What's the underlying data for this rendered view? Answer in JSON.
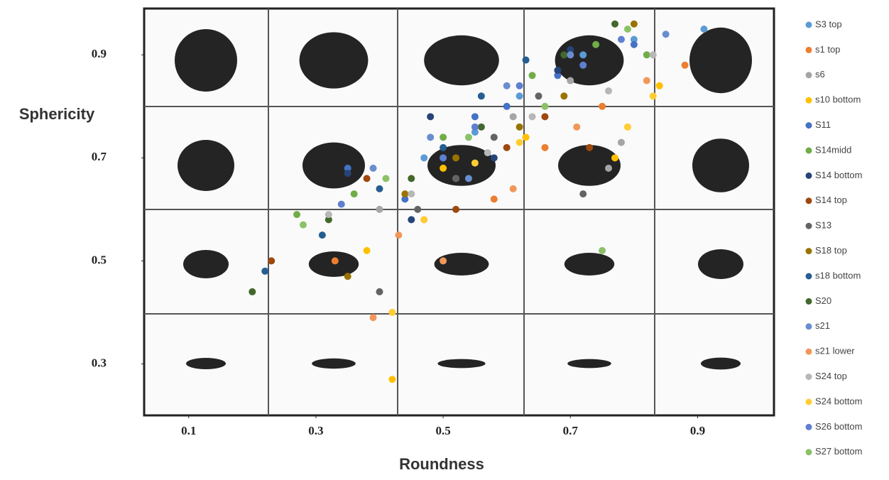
{
  "chart_data": {
    "type": "scatter",
    "x_label": "Roundness",
    "y_label": "Sphericity",
    "xlim": [
      0.03,
      1.02
    ],
    "ylim": [
      0.2,
      0.99
    ],
    "xticks": [
      0.1,
      0.3,
      0.5,
      0.7,
      0.9
    ],
    "yticks": [
      0.3,
      0.5,
      0.7,
      0.9
    ],
    "series": [
      {
        "name": "S3 top",
        "color": "#5b9bd5",
        "x": [
          0.91,
          0.55,
          0.62,
          0.72,
          0.47,
          0.8
        ],
        "values": [
          0.95,
          0.75,
          0.82,
          0.9,
          0.7,
          0.93
        ]
      },
      {
        "name": "s1 top",
        "color": "#ed7d31",
        "x": [
          0.33,
          0.47,
          0.58,
          0.66,
          0.75,
          0.88
        ],
        "values": [
          0.5,
          0.58,
          0.62,
          0.72,
          0.8,
          0.88
        ]
      },
      {
        "name": "s6",
        "color": "#a5a5a5",
        "x": [
          0.4,
          0.52,
          0.61,
          0.7,
          0.78,
          0.76
        ],
        "values": [
          0.6,
          0.66,
          0.78,
          0.85,
          0.73,
          0.68
        ]
      },
      {
        "name": "s10 bottom",
        "color": "#ffc000",
        "x": [
          0.42,
          0.38,
          0.5,
          0.63,
          0.77,
          0.84
        ],
        "values": [
          0.27,
          0.52,
          0.68,
          0.74,
          0.7,
          0.84
        ]
      },
      {
        "name": "S11",
        "color": "#4472c4",
        "x": [
          0.35,
          0.44,
          0.55,
          0.6,
          0.68,
          0.8
        ],
        "values": [
          0.68,
          0.62,
          0.78,
          0.8,
          0.86,
          0.92
        ]
      },
      {
        "name": "S14midd",
        "color": "#70ad47",
        "x": [
          0.27,
          0.36,
          0.5,
          0.64,
          0.74,
          0.82
        ],
        "values": [
          0.59,
          0.63,
          0.74,
          0.86,
          0.92,
          0.9
        ]
      },
      {
        "name": "S14 bottom",
        "color": "#264478",
        "x": [
          0.35,
          0.45,
          0.48,
          0.58,
          0.68,
          0.7
        ],
        "values": [
          0.67,
          0.58,
          0.78,
          0.7,
          0.87,
          0.91
        ]
      },
      {
        "name": "S14 top",
        "color": "#9e480e",
        "x": [
          0.23,
          0.38,
          0.52,
          0.6,
          0.66,
          0.73
        ],
        "values": [
          0.5,
          0.66,
          0.6,
          0.72,
          0.78,
          0.72
        ]
      },
      {
        "name": "S13",
        "color": "#636363",
        "x": [
          0.4,
          0.46,
          0.52,
          0.58,
          0.72,
          0.65
        ],
        "values": [
          0.44,
          0.6,
          0.66,
          0.74,
          0.63,
          0.82
        ]
      },
      {
        "name": "S18 top",
        "color": "#997300",
        "x": [
          0.35,
          0.44,
          0.52,
          0.62,
          0.69,
          0.8
        ],
        "values": [
          0.47,
          0.63,
          0.7,
          0.76,
          0.82,
          0.96
        ]
      },
      {
        "name": "s18 bottom",
        "color": "#255e91",
        "x": [
          0.22,
          0.31,
          0.4,
          0.5,
          0.56,
          0.63
        ],
        "values": [
          0.48,
          0.55,
          0.64,
          0.72,
          0.82,
          0.89
        ]
      },
      {
        "name": "S20",
        "color": "#43682b",
        "x": [
          0.2,
          0.32,
          0.45,
          0.56,
          0.69,
          0.77
        ],
        "values": [
          0.44,
          0.58,
          0.66,
          0.76,
          0.9,
          0.96
        ]
      },
      {
        "name": "s21",
        "color": "#698ed0",
        "x": [
          0.39,
          0.48,
          0.54,
          0.6,
          0.7,
          0.85
        ],
        "values": [
          0.68,
          0.74,
          0.66,
          0.84,
          0.9,
          0.94
        ]
      },
      {
        "name": "s21 lower",
        "color": "#f1975a",
        "x": [
          0.39,
          0.43,
          0.5,
          0.61,
          0.71,
          0.82
        ],
        "values": [
          0.39,
          0.55,
          0.5,
          0.64,
          0.76,
          0.85
        ]
      },
      {
        "name": "S24 top",
        "color": "#b7b7b7",
        "x": [
          0.32,
          0.45,
          0.57,
          0.64,
          0.76,
          0.83
        ],
        "values": [
          0.59,
          0.63,
          0.71,
          0.78,
          0.83,
          0.9
        ]
      },
      {
        "name": "S24 bottom",
        "color": "#ffcd33",
        "x": [
          0.42,
          0.47,
          0.55,
          0.62,
          0.79,
          0.83
        ],
        "values": [
          0.4,
          0.58,
          0.69,
          0.73,
          0.76,
          0.82
        ]
      },
      {
        "name": "S26 bottom",
        "color": "#5f7fd0",
        "x": [
          0.34,
          0.5,
          0.55,
          0.62,
          0.72,
          0.78
        ],
        "values": [
          0.61,
          0.7,
          0.76,
          0.84,
          0.88,
          0.93
        ]
      },
      {
        "name": "S27 bottom",
        "color": "#8cc168",
        "x": [
          0.28,
          0.41,
          0.54,
          0.66,
          0.75,
          0.79
        ],
        "values": [
          0.57,
          0.66,
          0.74,
          0.8,
          0.52,
          0.95
        ]
      }
    ]
  }
}
